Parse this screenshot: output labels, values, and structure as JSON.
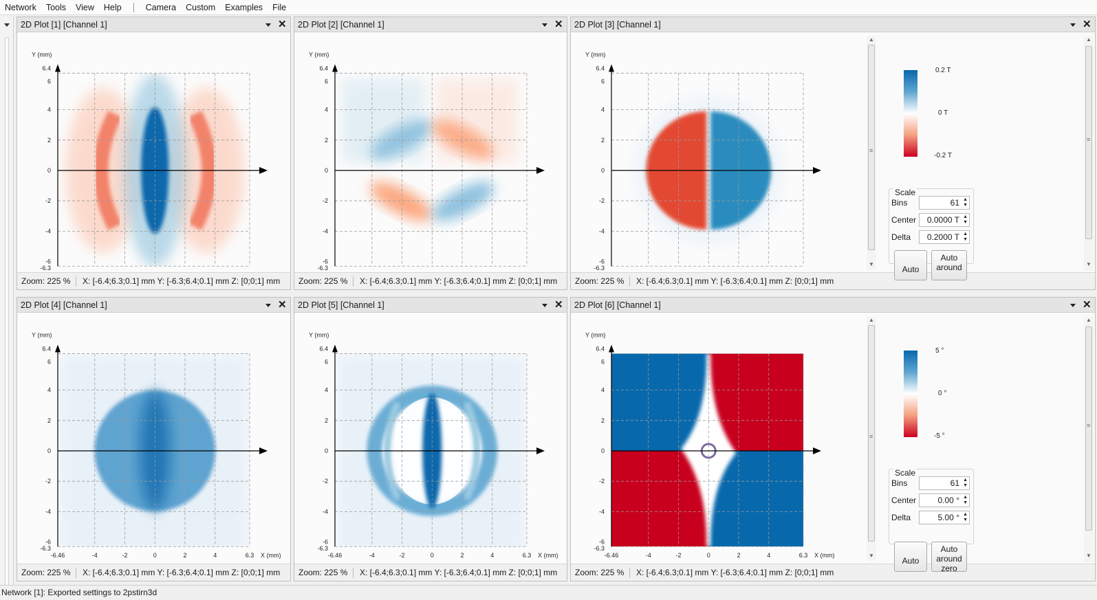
{
  "menu": [
    "Network",
    "Tools",
    "View",
    "Help",
    "Camera",
    "Custom",
    "Examples",
    "File"
  ],
  "panels": [
    {
      "title": "2D Plot [1] [Channel 1]",
      "zoom": "Zoom: 225 %",
      "range": "X: [-6.4;6.3;0.1] mm Y: [-6.3;6.4;0.1] mm Z: [0;0;1] mm"
    },
    {
      "title": "2D Plot [2] [Channel 1]",
      "zoom": "Zoom: 225 %",
      "range": "X: [-6.4;6.3;0.1] mm Y: [-6.3;6.4;0.1] mm Z: [0;0;1] mm"
    },
    {
      "title": "2D Plot [3] [Channel 1]",
      "zoom": "Zoom: 225 %",
      "range": "X: [-6.4;6.3;0.1] mm Y: [-6.3;6.4;0.1] mm Z: [0;0;1] mm"
    },
    {
      "title": "2D Plot [4] [Channel 1]",
      "zoom": "Zoom: 225 %",
      "range": "X: [-6.4;6.3;0.1] mm Y: [-6.3;6.4;0.1] mm Z: [0;0;1] mm"
    },
    {
      "title": "2D Plot [5] [Channel 1]",
      "zoom": "Zoom: 225 %",
      "range": "X: [-6.4;6.3;0.1] mm Y: [-6.3;6.4;0.1] mm Z: [0;0;1] mm"
    },
    {
      "title": "2D Plot [6] [Channel 1]",
      "zoom": "Zoom: 225 %",
      "range": "X: [-6.4;6.3;0.1] mm Y: [-6.3;6.4;0.1] mm Z: [0;0;1] mm"
    }
  ],
  "axes": {
    "ylabel": "Y (mm)",
    "xlabel": "X (mm)",
    "yticks": [
      "6",
      "4",
      "2",
      "0",
      "-2",
      "-4",
      "-6"
    ],
    "ytop": "6.4",
    "ybottom": "-6.3",
    "xticks": [
      "-4",
      "-2",
      "0",
      "2",
      "4"
    ],
    "xleft": "-6.46",
    "xright": "6.3"
  },
  "sidepanel3": {
    "cb_top": "0.2 T",
    "cb_mid": "0 T",
    "cb_bot": "-0.2 T",
    "scale_label": "Scale",
    "bins_label": "Bins",
    "bins": "61",
    "center_label": "Center",
    "center": "0.0000 T",
    "delta_label": "Delta",
    "delta": "0.2000 T",
    "auto": "Auto",
    "auto_zero": "Auto around"
  },
  "sidepanel6": {
    "cb_top": "5 °",
    "cb_mid": "0 °",
    "cb_bot": "-5 °",
    "scale_label": "Scale",
    "bins_label": "Bins",
    "bins": "61",
    "center_label": "Center",
    "center": "0.00 °",
    "delta_label": "Delta",
    "delta": "5.00 °",
    "auto": "Auto",
    "auto_zero": "Auto around zero"
  },
  "colors": {
    "blue": "#0868ac",
    "red": "#cc0022"
  },
  "status": "Network [1]: Exported settings to 2pstirn3d"
}
